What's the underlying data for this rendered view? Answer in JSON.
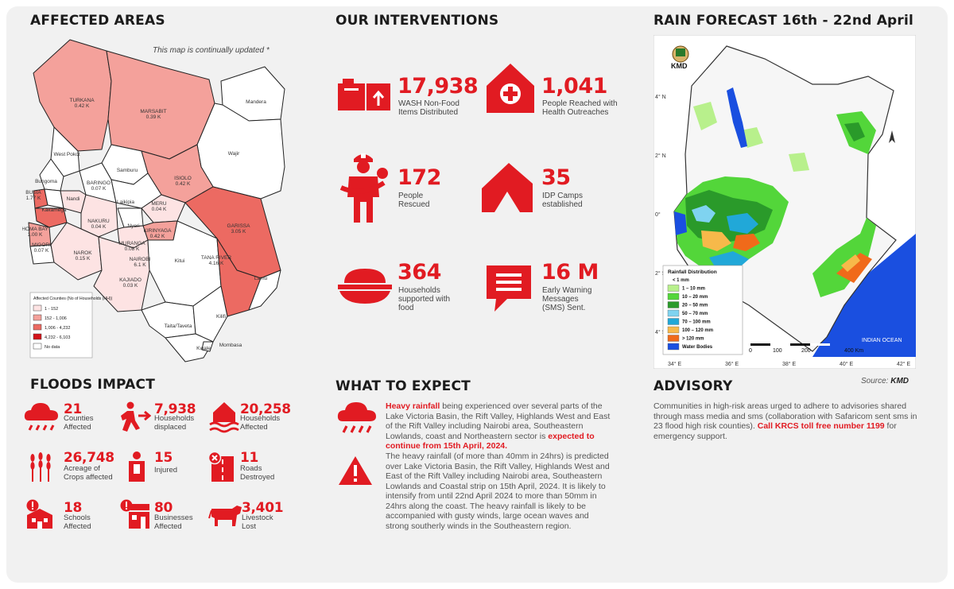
{
  "affected_areas": {
    "title": "AFFECTED AREAS",
    "note": "This map is continually updated *",
    "counties": [
      {
        "name": "TURKANA",
        "value": "0.42 K"
      },
      {
        "name": "MARSABIT",
        "value": "0.39 K"
      },
      {
        "name": "Mandera",
        "value": ""
      },
      {
        "name": "Wajir",
        "value": ""
      },
      {
        "name": "West Pokot",
        "value": ""
      },
      {
        "name": "Samburu",
        "value": ""
      },
      {
        "name": "ISIOLO",
        "value": "0.42 K"
      },
      {
        "name": "Bungoma",
        "value": ""
      },
      {
        "name": "BARINGO",
        "value": "0.07 K"
      },
      {
        "name": "BUSIA",
        "value": "1.77 K"
      },
      {
        "name": "Laikipia",
        "value": ""
      },
      {
        "name": "MERU",
        "value": "0.04 K"
      },
      {
        "name": "HOMA BAY",
        "value": "1.00 K"
      },
      {
        "name": "NAKURU",
        "value": "0.04 K"
      },
      {
        "name": "Nyeri",
        "value": ""
      },
      {
        "name": "KIRINYAGA",
        "value": "0.42 K"
      },
      {
        "name": "GARISSA",
        "value": "3.05 K"
      },
      {
        "name": "MIGORI",
        "value": "0.07 K"
      },
      {
        "name": "NAROK",
        "value": "0.15 K"
      },
      {
        "name": "MURANGA",
        "value": "0.08 K"
      },
      {
        "name": "NAIROBI",
        "value": "6.1 K"
      },
      {
        "name": "TANA RIVER",
        "value": "4.16 K"
      },
      {
        "name": "Kitui",
        "value": ""
      },
      {
        "name": "KAJIADO",
        "value": "0.03 K"
      },
      {
        "name": "Lamu",
        "value": ""
      },
      {
        "name": "Kilifi",
        "value": ""
      },
      {
        "name": "Taita/Taveta",
        "value": ""
      },
      {
        "name": "Kwale",
        "value": ""
      },
      {
        "name": "Mombasa",
        "value": ""
      },
      {
        "name": "Nandi",
        "value": ""
      },
      {
        "name": "Kakamega",
        "value": ""
      }
    ],
    "legend": {
      "title": "Affected Counties (No of Households (HH))",
      "items": [
        {
          "label": "1 - 152",
          "color": "#fde3e3"
        },
        {
          "label": "152 - 1,006",
          "color": "#f4a19b"
        },
        {
          "label": "1,006 - 4,232",
          "color": "#ec6a62"
        },
        {
          "label": "4,232 - 6,103",
          "color": "#d4141b"
        },
        {
          "label": "No data",
          "color": "#ffffff"
        }
      ]
    }
  },
  "interventions": {
    "title": "OUR INTERVENTIONS",
    "items": [
      {
        "value": "17,938",
        "label": "WASH Non-Food Items Distributed",
        "icon": "wash-items-icon"
      },
      {
        "value": "1,041",
        "label": "People Reached with Health Outreaches",
        "icon": "health-house-icon"
      },
      {
        "value": "172",
        "label": "People Rescued",
        "icon": "rescuer-icon"
      },
      {
        "value": "35",
        "label": "IDP Camps established",
        "icon": "tent-icon"
      },
      {
        "value": "364",
        "label": "Households supported with food",
        "icon": "food-bowl-icon"
      },
      {
        "value": "16 M",
        "label": "Early Warning Messages (SMS) Sent.",
        "icon": "message-icon"
      }
    ]
  },
  "rain_forecast": {
    "title": "RAIN FORECAST 16th - 22nd April",
    "agency": "KMD",
    "source_prefix": "Source:",
    "source": "KMD",
    "lat_labels": [
      "4° N",
      "2° N",
      "0°",
      "2° S",
      "4° S"
    ],
    "lon_labels": [
      "34° E",
      "36° E",
      "38° E",
      "40° E",
      "42° E"
    ],
    "scale": {
      "values": [
        "0",
        "100",
        "200",
        "400 Km"
      ]
    },
    "ocean_label": "INDIAN OCEAN",
    "legend_title": "Rainfall Distribution",
    "legend": [
      {
        "label": "< 1 mm",
        "color": "#ffffff"
      },
      {
        "label": "1 – 10 mm",
        "color": "#b8f08c"
      },
      {
        "label": "10 – 20 mm",
        "color": "#53d63a"
      },
      {
        "label": "20 – 50 mm",
        "color": "#2a9a2a"
      },
      {
        "label": "50 – 70 mm",
        "color": "#7fd3f0"
      },
      {
        "label": "70 – 100 mm",
        "color": "#21a8d8"
      },
      {
        "label": "100 – 120 mm",
        "color": "#f7b94a"
      },
      {
        "label": "> 120 mm",
        "color": "#f06a1a"
      },
      {
        "label": "Water Bodies",
        "color": "#1a4fe0"
      }
    ]
  },
  "floods_impact": {
    "title": "FLOODS IMPACT",
    "items": [
      {
        "value": "21",
        "label": "Counties Affected",
        "icon": "rain-cloud-icon"
      },
      {
        "value": "7,938",
        "label": "Households displaced",
        "icon": "person-running-icon"
      },
      {
        "value": "20,258",
        "label": "Households Affected",
        "icon": "flooded-house-icon"
      },
      {
        "value": "26,748",
        "label": "Acreage of Crops affected",
        "icon": "wheat-icon"
      },
      {
        "value": "15",
        "label": "Injured",
        "icon": "injured-person-icon"
      },
      {
        "value": "11",
        "label": "Roads Destroyed",
        "icon": "road-closed-icon"
      },
      {
        "value": "18",
        "label": "Schools Affected",
        "icon": "school-icon"
      },
      {
        "value": "80",
        "label": "Businesses Affected",
        "icon": "business-icon"
      },
      {
        "value": "3,401",
        "label": "Livestock Lost",
        "icon": "cow-icon"
      }
    ]
  },
  "what_to_expect": {
    "title": "WHAT TO EXPECT",
    "p1_highlight": "Heavy rainfall",
    "p1_body": " being experienced over several parts of the Lake Victoria Basin, the Rift Valley, Highlands West and East of the Rift Valley including Nairobi area, Southeastern Lowlands, coast and Northeastern sector is ",
    "p1_highlight2": "expected to continue from 15th April, 2024.",
    "p2": "The heavy rainfall (of more than 40mm in 24hrs) is predicted over Lake Victoria Basin, the Rift Valley, Highlands West and East of the Rift Valley including Nairobi area, Southeastern Lowlands and Coastal strip on 15th April, 2024. It is likely to intensify from until 22nd April 2024 to more than 50mm in 24hrs along the coast. The heavy rainfall is likely to be accompanied with gusty winds, large ocean waves and strong southerly winds in the Southeastern region."
  },
  "advisory": {
    "title": "ADVISORY",
    "body": "Communities in high-risk areas urged to adhere to advisories shared through mass media and sms (collaboration with Safaricom sent sms in 23 flood high risk counties). ",
    "highlight": "Call KRCS toll free number 1199",
    "tail": "  for emergency support."
  },
  "colors": {
    "accent": "#e11b22",
    "panel": "#f1f1f1"
  }
}
